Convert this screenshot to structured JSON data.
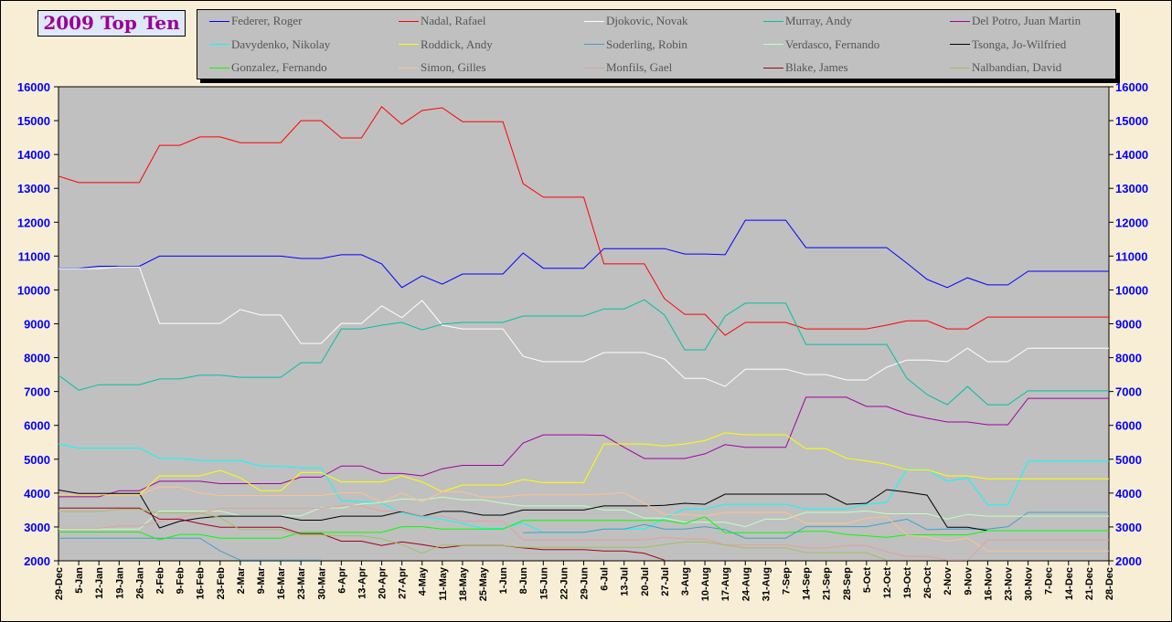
{
  "chart_data": {
    "type": "line",
    "title": "2009 Top Ten",
    "xlabel": "",
    "ylabel": "",
    "ylim": [
      2000,
      16000
    ],
    "yticks": [
      2000,
      3000,
      4000,
      5000,
      6000,
      7000,
      8000,
      9000,
      10000,
      11000,
      12000,
      13000,
      14000,
      15000,
      16000
    ],
    "grid": false,
    "legend_position": "top",
    "x": [
      "29-Dec",
      "5-Jan",
      "12-Jan",
      "19-Jan",
      "26-Jan",
      "2-Feb",
      "9-Feb",
      "16-Feb",
      "23-Feb",
      "2-Mar",
      "9-Mar",
      "16-Mar",
      "23-Mar",
      "30-Mar",
      "6-Apr",
      "13-Apr",
      "20-Apr",
      "27-Apr",
      "4-May",
      "11-May",
      "18-May",
      "25-May",
      "1-Jun",
      "8-Jun",
      "15-Jun",
      "22-Jun",
      "29-Jun",
      "6-Jul",
      "13-Jul",
      "20-Jul",
      "27-Jul",
      "3-Aug",
      "10-Aug",
      "17-Aug",
      "24-Aug",
      "31-Aug",
      "7-Sep",
      "14-Sep",
      "21-Sep",
      "28-Sep",
      "5-Oct",
      "12-Oct",
      "19-Oct",
      "26-Oct",
      "2-Nov",
      "9-Nov",
      "16-Nov",
      "23-Nov",
      "30-Nov",
      "7-Dec",
      "14-Dec",
      "21-Dec",
      "28-Dec"
    ],
    "series": [
      {
        "name": "Federer, Roger",
        "color": "#0000ff",
        "values": [
          10640,
          10640,
          10700,
          10700,
          10700,
          11000,
          11000,
          11000,
          11000,
          11000,
          11000,
          11000,
          10930,
          10930,
          11040,
          11040,
          10770,
          10070,
          10420,
          10170,
          10470,
          10470,
          10470,
          11090,
          10640,
          10640,
          10640,
          11220,
          11220,
          11220,
          11220,
          11060,
          11060,
          11040,
          12060,
          12060,
          12060,
          11250,
          11250,
          11250,
          11250,
          11250,
          10790,
          10310,
          10070,
          10360,
          10150,
          10150,
          10550,
          10550,
          10550,
          10550,
          10550
        ]
      },
      {
        "name": "Nadal, Rafael",
        "color": "#ff0000",
        "values": [
          13360,
          13170,
          13170,
          13170,
          13170,
          14270,
          14270,
          14520,
          14520,
          14350,
          14350,
          14350,
          15000,
          15000,
          14490,
          14490,
          15410,
          14890,
          15300,
          15380,
          14970,
          14970,
          14970,
          13140,
          12740,
          12740,
          12740,
          10770,
          10770,
          10770,
          9740,
          9280,
          9280,
          8660,
          9040,
          9040,
          9040,
          8850,
          8850,
          8850,
          8850,
          8960,
          9090,
          9090,
          8850,
          8850,
          9200,
          9200,
          9200,
          9200,
          9200,
          9200,
          9200
        ]
      },
      {
        "name": "Djokovic, Novak",
        "color": "#ffffff",
        "values": [
          10630,
          10630,
          10630,
          10680,
          10680,
          9010,
          9010,
          9010,
          9010,
          9420,
          9260,
          9260,
          8420,
          8420,
          9010,
          9010,
          9530,
          9180,
          9690,
          8960,
          8850,
          8850,
          8850,
          8040,
          7880,
          7880,
          7880,
          8150,
          8150,
          8150,
          7960,
          7390,
          7390,
          7150,
          7660,
          7660,
          7660,
          7500,
          7500,
          7340,
          7340,
          7720,
          7930,
          7930,
          7880,
          8280,
          7880,
          7880,
          8280,
          8280,
          8280,
          8280,
          8280
        ]
      },
      {
        "name": "Murray, Andy",
        "color": "#00c0a0",
        "values": [
          7480,
          7040,
          7200,
          7200,
          7200,
          7370,
          7370,
          7480,
          7480,
          7420,
          7420,
          7420,
          7850,
          7850,
          8850,
          8850,
          8960,
          9040,
          8820,
          8990,
          9040,
          9040,
          9040,
          9230,
          9230,
          9230,
          9230,
          9440,
          9440,
          9710,
          9260,
          8230,
          8230,
          9230,
          9610,
          9610,
          9610,
          8390,
          8390,
          8390,
          8390,
          8390,
          7390,
          6910,
          6610,
          7150,
          6610,
          6610,
          7020,
          7020,
          7020,
          7020,
          7020
        ]
      },
      {
        "name": "Del Potro, Juan Martin",
        "color": "#a000a0",
        "values": [
          3890,
          3890,
          3890,
          4070,
          4070,
          4350,
          4350,
          4350,
          4280,
          4280,
          4280,
          4280,
          4470,
          4470,
          4800,
          4800,
          4580,
          4580,
          4510,
          4720,
          4820,
          4820,
          4820,
          5480,
          5720,
          5720,
          5720,
          5700,
          5350,
          5020,
          5020,
          5020,
          5160,
          5430,
          5350,
          5350,
          5350,
          6830,
          6830,
          6830,
          6560,
          6560,
          6340,
          6210,
          6100,
          6100,
          6020,
          6020,
          6800,
          6800,
          6800,
          6800,
          6800
        ]
      },
      {
        "name": "Davydenko, Nikolay",
        "color": "#00ffff",
        "values": [
          5450,
          5330,
          5330,
          5330,
          5330,
          5030,
          5030,
          4960,
          4960,
          4960,
          4800,
          4800,
          4740,
          4740,
          3770,
          3750,
          3700,
          3410,
          3290,
          3230,
          3100,
          2960,
          2960,
          3120,
          2840,
          2840,
          2840,
          2940,
          2940,
          2940,
          3250,
          3530,
          3530,
          3670,
          3670,
          3670,
          3670,
          3530,
          3530,
          3530,
          3670,
          3730,
          4700,
          4700,
          4350,
          4450,
          3650,
          3650,
          4940,
          4940,
          4940,
          4940,
          4940
        ]
      },
      {
        "name": "Roddick, Andy",
        "color": "#ffff00",
        "values": [
          3950,
          3950,
          3950,
          3950,
          3950,
          4510,
          4510,
          4510,
          4670,
          4450,
          4070,
          4070,
          4610,
          4610,
          4330,
          4330,
          4330,
          4510,
          4330,
          4040,
          4240,
          4240,
          4240,
          4400,
          4310,
          4310,
          4310,
          5450,
          5450,
          5450,
          5390,
          5450,
          5550,
          5780,
          5720,
          5720,
          5720,
          5310,
          5310,
          5030,
          4950,
          4850,
          4690,
          4690,
          4510,
          4510,
          4420,
          4420,
          4420,
          4420,
          4420,
          4420,
          4420
        ]
      },
      {
        "name": "Soderling, Robin",
        "color": "#40a0c8",
        "values": [
          2670,
          2670,
          2670,
          2670,
          2670,
          2670,
          2670,
          2670,
          2290,
          2020,
          2020,
          2020,
          2020,
          2020,
          null,
          null,
          null,
          null,
          null,
          null,
          null,
          null,
          null,
          2830,
          2840,
          2840,
          2840,
          2940,
          2940,
          3070,
          2940,
          2940,
          3010,
          2920,
          2670,
          2670,
          2670,
          3010,
          3010,
          3010,
          3010,
          3120,
          3230,
          2920,
          2940,
          2940,
          2940,
          3010,
          3430,
          3430,
          3430,
          3430,
          3430
        ]
      },
      {
        "name": "Verdasco, Fernando",
        "color": "#c0ffc0",
        "values": [
          2940,
          2940,
          2940,
          2940,
          2940,
          3470,
          3470,
          3470,
          3470,
          3330,
          3330,
          3330,
          3330,
          3570,
          3560,
          3680,
          3720,
          3830,
          3800,
          3880,
          3800,
          3800,
          3700,
          3620,
          3620,
          3620,
          3620,
          3500,
          3500,
          3260,
          3260,
          3140,
          3140,
          3140,
          3010,
          3230,
          3230,
          3430,
          3430,
          3430,
          3470,
          3390,
          3390,
          3390,
          3230,
          3370,
          3320,
          3320,
          3320,
          3320,
          3320,
          3320,
          3320
        ]
      },
      {
        "name": "Tsonga, Jo-Wilfried",
        "color": "#000000",
        "values": [
          4090,
          3990,
          3990,
          3990,
          3990,
          2970,
          3170,
          3260,
          3320,
          3320,
          3320,
          3320,
          3200,
          3200,
          3320,
          3320,
          3320,
          3460,
          3320,
          3460,
          3460,
          3350,
          3350,
          3500,
          3500,
          3500,
          3500,
          3620,
          3620,
          3620,
          3640,
          3700,
          3670,
          3970,
          3970,
          3970,
          3970,
          3970,
          3970,
          3670,
          3700,
          4100,
          4030,
          3940,
          2990,
          2990,
          2890,
          null,
          null,
          null,
          null,
          null,
          null
        ]
      },
      {
        "name": "Gonzalez, Fernando",
        "color": "#00ff00",
        "values": [
          2850,
          2850,
          2850,
          2850,
          2850,
          2620,
          2780,
          2780,
          2670,
          2670,
          2670,
          2670,
          2840,
          2840,
          2840,
          2840,
          2840,
          3010,
          3010,
          2940,
          2940,
          2940,
          2940,
          3190,
          3190,
          3190,
          3190,
          3190,
          3190,
          3190,
          3190,
          3100,
          3300,
          2830,
          2830,
          2830,
          2830,
          2870,
          2870,
          2780,
          2740,
          2690,
          2770,
          2770,
          2770,
          2770,
          2890,
          2890,
          2890,
          2890,
          2890,
          2890,
          2890
        ]
      },
      {
        "name": "Simon, Gilles",
        "color": "#ffc090",
        "values": [
          3950,
          3950,
          3950,
          3950,
          3950,
          4180,
          4180,
          4000,
          3930,
          3930,
          3930,
          3930,
          3930,
          3930,
          4010,
          4010,
          3730,
          4010,
          3740,
          4040,
          4040,
          3880,
          3880,
          3950,
          3950,
          3950,
          3950,
          3970,
          4010,
          3700,
          3370,
          3370,
          3320,
          3430,
          3430,
          3430,
          3430,
          3100,
          3100,
          3100,
          3260,
          3300,
          2760,
          2700,
          2580,
          2670,
          2290,
          2290,
          2290,
          2290,
          2290,
          2290,
          2290
        ]
      },
      {
        "name": "Monfils, Gael",
        "color": "#e0a0a0",
        "values": [
          2960,
          2960,
          2960,
          3030,
          3030,
          3150,
          3280,
          3400,
          3550,
          3550,
          3550,
          3550,
          3550,
          3550,
          3620,
          3620,
          3470,
          3470,
          3320,
          3320,
          3170,
          3170,
          3170,
          2620,
          2620,
          2620,
          2620,
          2620,
          2620,
          2620,
          2690,
          2650,
          2650,
          2470,
          2470,
          2470,
          2470,
          2380,
          2380,
          2450,
          2450,
          2270,
          2130,
          2130,
          2020,
          2020,
          2620,
          2620,
          2620,
          2620,
          2620,
          2620,
          2620
        ]
      },
      {
        "name": "Blake, James",
        "color": "#a00020",
        "values": [
          3560,
          3560,
          3560,
          3560,
          3560,
          3230,
          3230,
          3100,
          2990,
          2990,
          2990,
          2990,
          2800,
          2800,
          2580,
          2580,
          2450,
          2560,
          2480,
          2380,
          2450,
          2450,
          2450,
          2380,
          2330,
          2330,
          2330,
          2290,
          2290,
          2220,
          2020,
          null,
          null,
          null,
          null,
          null,
          null,
          null,
          null,
          null,
          null,
          null,
          null,
          null,
          null,
          null,
          null,
          null,
          null,
          null,
          null,
          null,
          null
        ]
      },
      {
        "name": "Nalbandian, David",
        "color": "#a0c060",
        "values": [
          3460,
          3460,
          3460,
          3520,
          3520,
          3410,
          3410,
          3410,
          3280,
          2920,
          2920,
          2920,
          2760,
          2760,
          2740,
          2740,
          2650,
          2480,
          2220,
          2470,
          2450,
          2450,
          2450,
          2400,
          2400,
          2400,
          2400,
          2400,
          2400,
          2400,
          2480,
          2560,
          2560,
          2470,
          2380,
          2380,
          2380,
          2240,
          2240,
          2240,
          2240,
          2020,
          null,
          null,
          null,
          null,
          null,
          null,
          null,
          null,
          null,
          null,
          null
        ]
      }
    ]
  }
}
